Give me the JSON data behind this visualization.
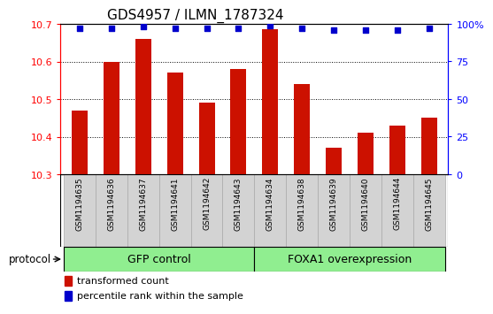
{
  "title": "GDS4957 / ILMN_1787324",
  "samples": [
    "GSM1194635",
    "GSM1194636",
    "GSM1194637",
    "GSM1194641",
    "GSM1194642",
    "GSM1194643",
    "GSM1194634",
    "GSM1194638",
    "GSM1194639",
    "GSM1194640",
    "GSM1194644",
    "GSM1194645"
  ],
  "bar_values": [
    10.47,
    10.6,
    10.66,
    10.57,
    10.49,
    10.58,
    10.685,
    10.54,
    10.37,
    10.41,
    10.43,
    10.45
  ],
  "percentile_values": [
    97,
    97,
    98,
    97,
    97,
    97,
    99,
    97,
    96,
    96,
    96,
    97
  ],
  "bar_color": "#cc1100",
  "dot_color": "#0000cc",
  "ylim_left": [
    10.3,
    10.7
  ],
  "ylim_right": [
    0,
    100
  ],
  "yticks_left": [
    10.3,
    10.4,
    10.5,
    10.6,
    10.7
  ],
  "yticks_right": [
    0,
    25,
    50,
    75,
    100
  ],
  "group1_label": "GFP control",
  "group2_label": "FOXA1 overexpression",
  "group1_count": 6,
  "group2_count": 6,
  "protocol_label": "protocol",
  "legend_bar_label": "transformed count",
  "legend_dot_label": "percentile rank within the sample",
  "group_color": "#90ee90",
  "tick_bg_color": "#d3d3d3",
  "bg_color": "#ffffff",
  "title_fontsize": 11,
  "axis_fontsize": 8,
  "sample_fontsize": 6.5,
  "group_fontsize": 9,
  "legend_fontsize": 8,
  "bar_width": 0.5
}
